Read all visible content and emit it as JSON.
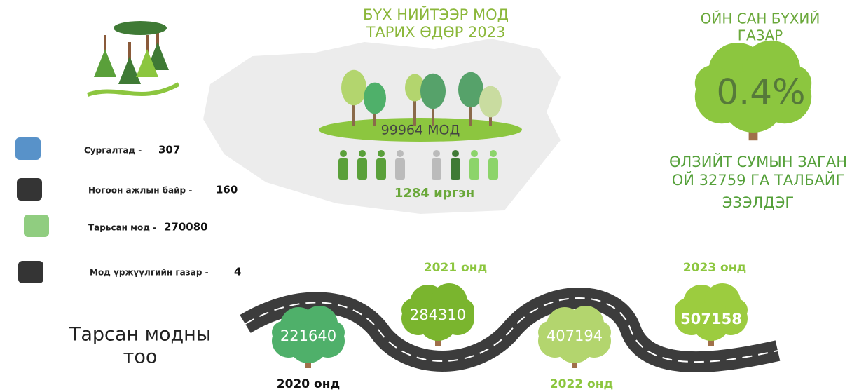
{
  "header": {
    "title_lines": [
      "БҮХ НИЙТЭЭР МОД",
      "ТАРИХ ӨДӨР 2023"
    ]
  },
  "center": {
    "trees": "99964 МОД",
    "citizens": "1284 иргэн"
  },
  "forest": {
    "title_lines": [
      "ОЙН САН БҮХИЙ",
      "ГАЗАР"
    ],
    "share": "0.4%",
    "description_lines": [
      "ӨЛЗИЙТ СУМЫН ЗАГАН",
      "ОЙ 32759 ГА ТАЛБАЙГ",
      "ЭЗЭЛДЭГ"
    ]
  },
  "stats": [
    {
      "label": "Сургалтад -",
      "value": 307
    },
    {
      "label": "Ногоон ажлын байр -",
      "value": 160
    },
    {
      "label": "Тарьсан мод -",
      "value": 270080
    },
    {
      "label": "Мод үржүүлгийн газар -",
      "value": 4
    }
  ],
  "planted": {
    "title_lines": [
      "Тарсан модны",
      "тоо"
    ],
    "years": [
      {
        "label": "2020 онд",
        "value": 221640
      },
      {
        "label": "2021 онд",
        "value": 284310
      },
      {
        "label": "2022 онд",
        "value": 407194
      },
      {
        "label": "2023 онд",
        "value": 507158
      }
    ]
  }
}
